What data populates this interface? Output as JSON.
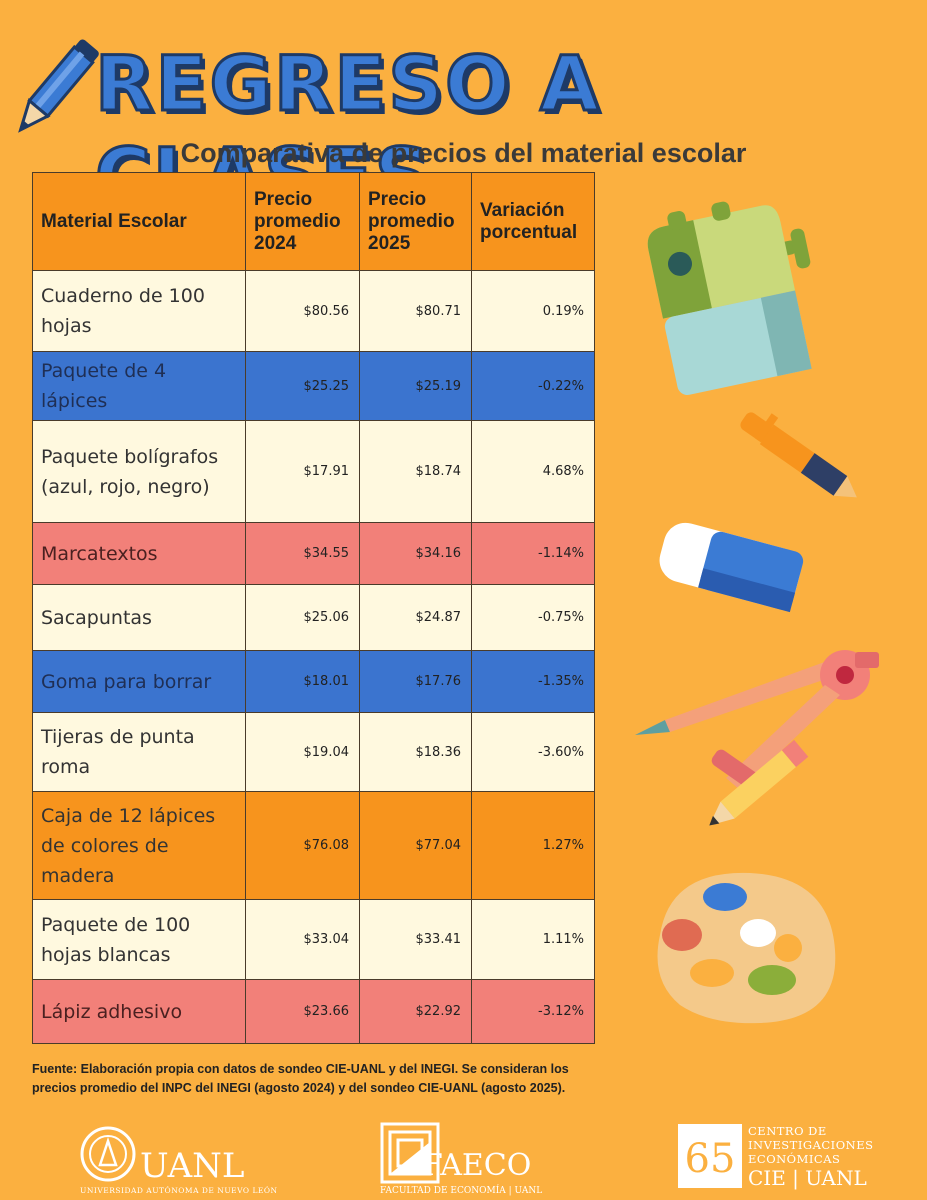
{
  "header": {
    "title": "REGRESO A CLASES",
    "subtitle": "Comparativa de precios del material escolar"
  },
  "table": {
    "columns": [
      "Material Escolar",
      "Precio promedio 2024",
      "Precio promedio 2025",
      "Variación porcentual"
    ],
    "rows": [
      {
        "material": "Cuaderno de 100 hojas",
        "p2024": "$80.56",
        "p2025": "$80.71",
        "var": "0.19%",
        "color": "#FFF9DF"
      },
      {
        "material": "Paquete de 4 lápices",
        "p2024": "$25.25",
        "p2025": "$25.19",
        "var": "-0.22%",
        "color": "#3B74CF"
      },
      {
        "material": "Paquete bolígrafos (azul, rojo, negro)",
        "p2024": "$17.91",
        "p2025": "$18.74",
        "var": "4.68%",
        "color": "#FFF9DF"
      },
      {
        "material": "Marcatextos",
        "p2024": "$34.55",
        "p2025": "$34.16",
        "var": "-1.14%",
        "color": "#F28079"
      },
      {
        "material": "Sacapuntas",
        "p2024": "$25.06",
        "p2025": "$24.87",
        "var": "-0.75%",
        "color": "#FFF9DF"
      },
      {
        "material": "Goma para borrar",
        "p2024": "$18.01",
        "p2025": "$17.76",
        "var": "-1.35%",
        "color": "#3B74CF"
      },
      {
        "material": "Tijeras de punta roma",
        "p2024": "$19.04",
        "p2025": "$18.36",
        "var": "-3.60%",
        "color": "#FFF9DF"
      },
      {
        "material": "Caja de 12 lápices de colores de madera",
        "p2024": "$76.08",
        "p2025": "$77.04",
        "var": "1.27%",
        "color": "#F7941D"
      },
      {
        "material": "Paquete de 100 hojas blancas",
        "p2024": "$33.04",
        "p2025": "$33.41",
        "var": "1.11%",
        "color": "#FFF9DF"
      },
      {
        "material": "Lápiz adhesivo",
        "p2024": "$23.66",
        "p2025": "$22.92",
        "var": "-3.12%",
        "color": "#F28079"
      }
    ]
  },
  "source": "Fuente: Elaboración propia con datos de sondeo CIE-UANL y del INEGI. Se consideran los precios promedio del INPC del INEGI (agosto 2024) y del sondeo CIE-UANL (agosto 2025).",
  "logos": {
    "uanl_name": "UANL",
    "uanl_sub": "UNIVERSIDAD AUTÓNOMA DE NUEVO LEÓN",
    "faeco_name": "FAECO",
    "faeco_sub": "FACULTAD DE ECONOMÍA | UANL",
    "cie_number": "65",
    "cie_line1": "CENTRO DE",
    "cie_line2": "INVESTIGACIONES",
    "cie_line3": "ECONÓMICAS",
    "cie_short": "CIE | UANL"
  },
  "colors": {
    "background": "#FBB040",
    "header_cell": "#F7941D",
    "title_blue": "#3B7BD4",
    "row_cream": "#FFF9DF",
    "row_blue": "#3B74CF",
    "row_pink": "#F28079"
  },
  "icons": [
    "pencil-icon",
    "sharpener-icon",
    "pen-icon",
    "eraser-icon",
    "compass-icon",
    "paint-palette-icon",
    "uanl-seal-icon",
    "faeco-logo-icon",
    "cie-logo-icon"
  ]
}
